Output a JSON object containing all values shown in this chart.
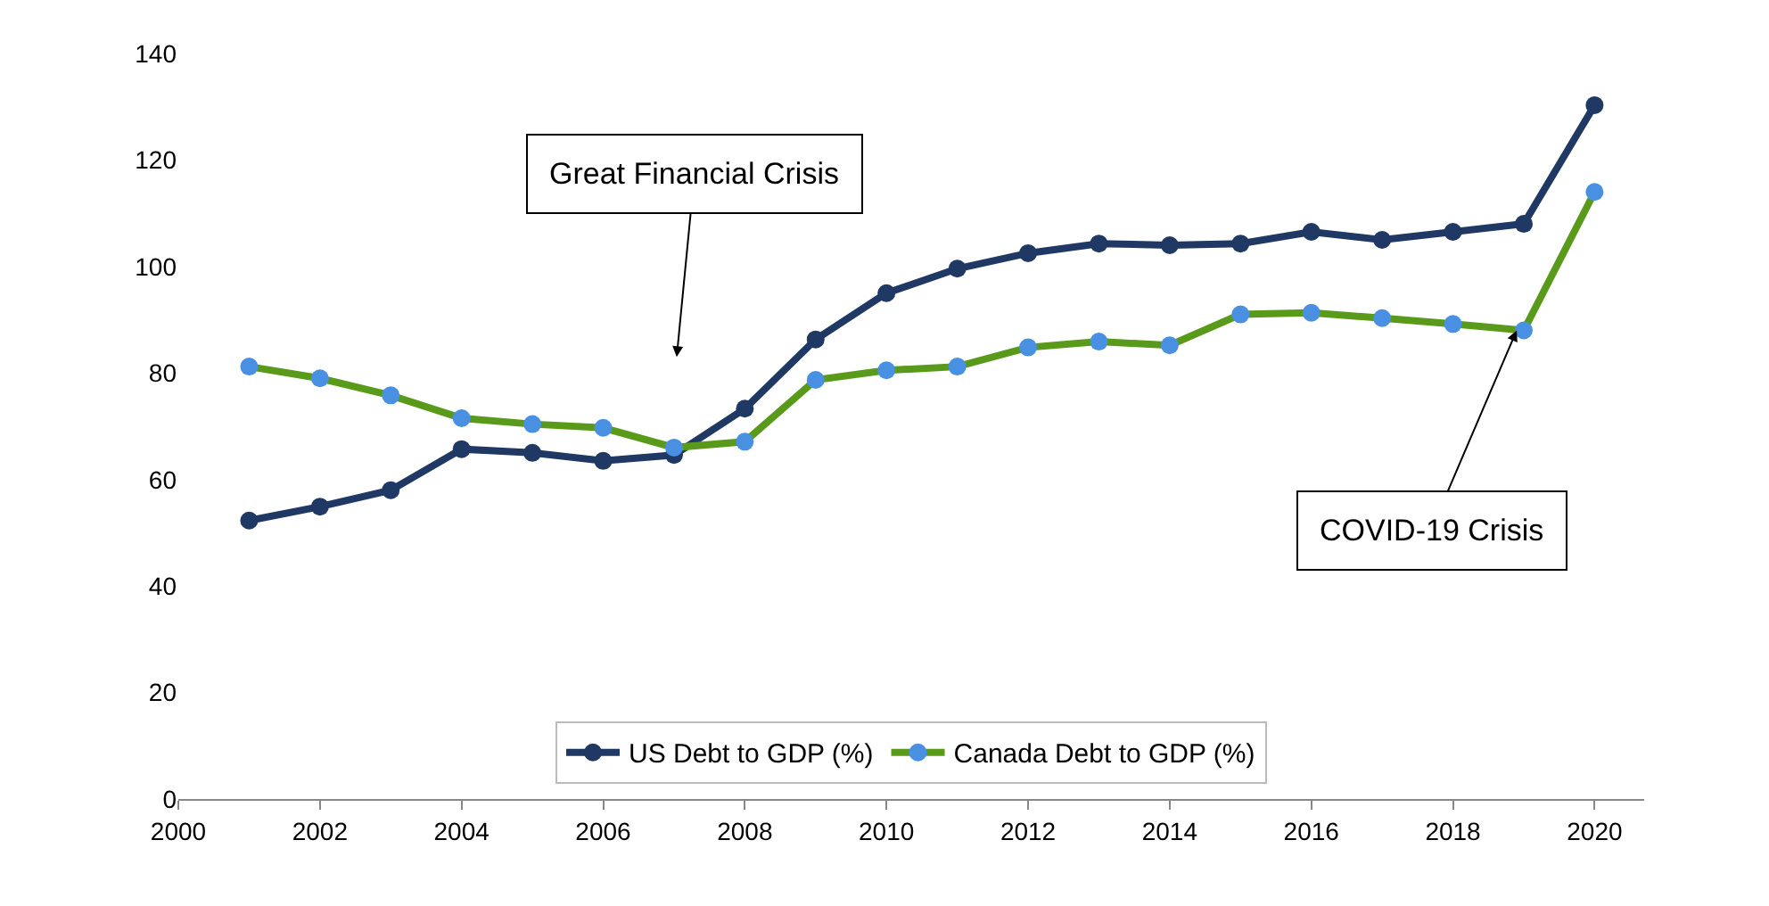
{
  "chart_data": {
    "type": "line",
    "x": [
      2001,
      2002,
      2003,
      2004,
      2005,
      2006,
      2007,
      2008,
      2009,
      2010,
      2011,
      2012,
      2013,
      2014,
      2015,
      2016,
      2017,
      2018,
      2019,
      2020
    ],
    "series": [
      {
        "name": "US Debt to GDP (%)",
        "color": "#1f3864",
        "values": [
          52.3,
          54.9,
          58,
          65.7,
          65,
          63.5,
          64.6,
          73.3,
          86.3,
          95,
          99.6,
          102.5,
          104.3,
          104,
          104.3,
          106.5,
          105,
          106.5,
          108,
          130.3
        ]
      },
      {
        "name": "Canada Debt to GDP (%)",
        "color": "#5a9a1a",
        "colors": [
          "#4a90e2",
          "#4a90e2",
          "#4a90e2",
          "#4a90e2",
          "#4a90e2",
          "#4a90e2",
          "#4a90e2",
          "#4a90e2",
          "#4a90e2",
          "#4a90e2",
          "#4a90e2",
          "#4a90e2",
          "#4a90e2",
          "#4a90e2",
          "#4a90e2",
          "#4a90e2",
          "#4a90e2",
          "#4a90e2",
          "#4a90e2",
          "#4a90e2"
        ],
        "values": [
          81.2,
          79,
          75.8,
          71.5,
          70.4,
          69.7,
          66,
          67.1,
          78.7,
          80.5,
          81.2,
          84.8,
          85.9,
          85.2,
          91,
          91.3,
          90.3,
          89.2,
          88,
          114
        ]
      }
    ],
    "xlim": [
      2000,
      2020.7
    ],
    "xticks": [
      2000,
      2002,
      2004,
      2006,
      2008,
      2010,
      2012,
      2014,
      2016,
      2018,
      2020
    ],
    "ylim": [
      0,
      140
    ],
    "yticks": [
      0,
      20,
      40,
      60,
      80,
      100,
      120,
      140
    ],
    "annotations": [
      "Great Financial Crisis",
      {
        "text": "COVID-19 Crisis",
        "x": 2018.9,
        "y": 88
      }
    ],
    "legend": "bottom",
    "marker": "circle",
    "line_style": "solid"
  }
}
